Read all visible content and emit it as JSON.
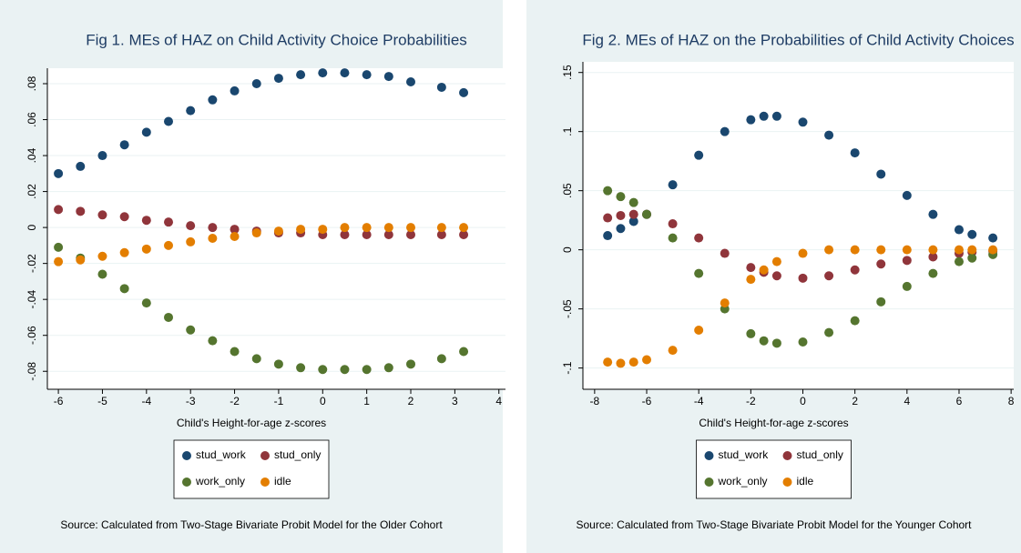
{
  "chart_data": [
    {
      "type": "scatter",
      "title": "Fig 1.  MEs of HAZ on Child Activity Choice Probabilities",
      "x_label": "Child's Height-for-age z-scores",
      "note": "Source: Calculated from Two-Stage Bivariate Probit Model for the Older Cohort",
      "x": [
        -6,
        -5.5,
        -5,
        -4.5,
        -4,
        -3.5,
        -3,
        -2.5,
        -2,
        -1.5,
        -1,
        -0.5,
        0,
        0.5,
        1,
        1.5,
        2,
        2.7,
        3.2
      ],
      "series": [
        {
          "name": "stud_work",
          "color": "#1a476f",
          "values": [
            0.03,
            0.034,
            0.04,
            0.046,
            0.053,
            0.059,
            0.065,
            0.071,
            0.076,
            0.08,
            0.083,
            0.085,
            0.086,
            0.086,
            0.085,
            0.084,
            0.081,
            0.078,
            0.075
          ]
        },
        {
          "name": "stud_only",
          "color": "#90353b",
          "values": [
            0.01,
            0.009,
            0.007,
            0.006,
            0.004,
            0.003,
            0.001,
            0,
            -0.001,
            -0.002,
            -0.003,
            -0.003,
            -0.004,
            -0.004,
            -0.004,
            -0.004,
            -0.004,
            -0.004,
            -0.004
          ]
        },
        {
          "name": "work_only",
          "color": "#55752f",
          "values": [
            -0.011,
            -0.017,
            -0.026,
            -0.034,
            -0.042,
            -0.05,
            -0.057,
            -0.063,
            -0.069,
            -0.073,
            -0.076,
            -0.078,
            -0.079,
            -0.079,
            -0.079,
            -0.078,
            -0.076,
            -0.073,
            -0.069
          ]
        },
        {
          "name": "idle",
          "color": "#e37e00",
          "values": [
            -0.019,
            -0.018,
            -0.016,
            -0.014,
            -0.012,
            -0.01,
            -0.008,
            -0.006,
            -0.005,
            -0.003,
            -0.002,
            -0.001,
            -0.001,
            0,
            0,
            0,
            0,
            0,
            0
          ]
        }
      ],
      "xlim": [
        -6.25,
        4.15
      ],
      "xticks": [
        -6,
        -5,
        -4,
        -3,
        -2,
        -1,
        0,
        1,
        2,
        3,
        4
      ],
      "ylim": [
        -0.09,
        0.0886
      ],
      "yticks": [
        {
          "value": -0.08,
          "label": "-.08"
        },
        {
          "value": -0.06,
          "label": "-.06"
        },
        {
          "value": -0.04,
          "label": "-.04"
        },
        {
          "value": -0.02,
          "label": "-.02"
        },
        0,
        {
          "value": 0.02,
          "label": ".02"
        },
        {
          "value": 0.04,
          "label": ".04"
        },
        {
          "value": 0.06,
          "label": ".06"
        },
        {
          "value": 0.08,
          "label": ".08"
        }
      ],
      "grid": true
    },
    {
      "type": "scatter",
      "title": "Fig 2.  MEs of HAZ on the Probabilities of Child Activity Choices",
      "x_label": "Child's Height-for-age z-scores",
      "note": "Source: Calculated from Two-Stage Bivariate Probit Model for the Younger Cohort",
      "x": [
        -7.5,
        -7,
        -6.5,
        -6,
        -5,
        -4,
        -3,
        -2,
        -1.5,
        -1,
        0,
        1,
        2,
        3,
        4,
        5,
        6,
        6.5,
        7.3
      ],
      "series": [
        {
          "name": "stud_work",
          "color": "#1a476f",
          "values": [
            0.012,
            0.018,
            0.024,
            0.03,
            0.055,
            0.08,
            0.1,
            0.11,
            0.113,
            0.113,
            0.108,
            0.097,
            0.082,
            0.064,
            0.046,
            0.03,
            0.017,
            0.013,
            0.01
          ]
        },
        {
          "name": "stud_only",
          "color": "#90353b",
          "values": [
            0.027,
            0.029,
            0.03,
            0.03,
            0.022,
            0.01,
            -0.003,
            -0.015,
            -0.019,
            -0.022,
            -0.024,
            -0.022,
            -0.017,
            -0.012,
            -0.009,
            -0.006,
            -0.003,
            -0.002,
            -0.001
          ]
        },
        {
          "name": "work_only",
          "color": "#55752f",
          "values": [
            0.05,
            0.045,
            0.04,
            0.03,
            0.01,
            -0.02,
            -0.05,
            -0.071,
            -0.077,
            -0.079,
            -0.078,
            -0.07,
            -0.06,
            -0.044,
            -0.031,
            -0.02,
            -0.01,
            -0.007,
            -0.004
          ]
        },
        {
          "name": "idle",
          "color": "#e37e00",
          "values": [
            -0.095,
            -0.096,
            -0.095,
            -0.093,
            -0.085,
            -0.068,
            -0.045,
            -0.025,
            -0.017,
            -0.01,
            -0.003,
            0,
            0,
            0,
            0,
            0,
            0,
            0,
            0
          ]
        }
      ],
      "xlim": [
        -8.45,
        8.1
      ],
      "xticks": [
        -8,
        -6,
        -4,
        -2,
        0,
        2,
        4,
        6,
        8
      ],
      "ylim": [
        -0.118,
        0.159
      ],
      "yticks": [
        {
          "value": -0.1,
          "label": "-.1"
        },
        {
          "value": -0.05,
          "label": "-.05"
        },
        0,
        {
          "value": 0.05,
          "label": ".05"
        },
        {
          "value": 0.1,
          "label": ".1"
        },
        {
          "value": 0.15,
          "label": ".15"
        }
      ],
      "grid": true
    }
  ]
}
